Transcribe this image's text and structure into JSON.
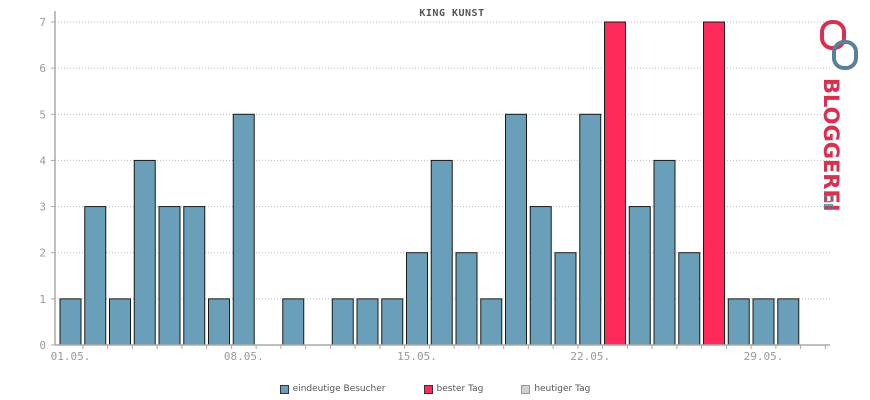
{
  "chart_data": {
    "type": "bar",
    "title": "KING KUNST",
    "x_tick_labels": [
      "01.05.",
      "08.05.",
      "15.05.",
      "22.05.",
      "29.05."
    ],
    "days": [
      1,
      2,
      3,
      4,
      5,
      6,
      7,
      8,
      9,
      10,
      11,
      12,
      13,
      14,
      15,
      16,
      17,
      18,
      19,
      20,
      21,
      22,
      23,
      24,
      25,
      26,
      27,
      28,
      29,
      30,
      31
    ],
    "values": [
      1,
      3,
      1,
      4,
      3,
      3,
      1,
      5,
      0,
      1,
      0,
      1,
      1,
      1,
      2,
      4,
      2,
      1,
      5,
      3,
      2,
      5,
      7,
      3,
      4,
      2,
      7,
      1,
      1,
      1,
      0
    ],
    "best_days": [
      23,
      27
    ],
    "ylim": [
      0,
      7
    ],
    "y_ticks": [
      0,
      1,
      2,
      3,
      4,
      5,
      6,
      7
    ],
    "grid": true,
    "series": [
      {
        "name": "eindeutige Besucher",
        "color": "#6a9fb9"
      },
      {
        "name": "bester Tag",
        "color": "#ff2a5a"
      },
      {
        "name": "heutiger Tag",
        "color": "#d0d0d0"
      }
    ]
  },
  "logo": {
    "wordmark": "BLOGGEREI",
    "suffix": ".DE",
    "color_main": "#d8304f",
    "color_accent": "#5a7f9a"
  }
}
